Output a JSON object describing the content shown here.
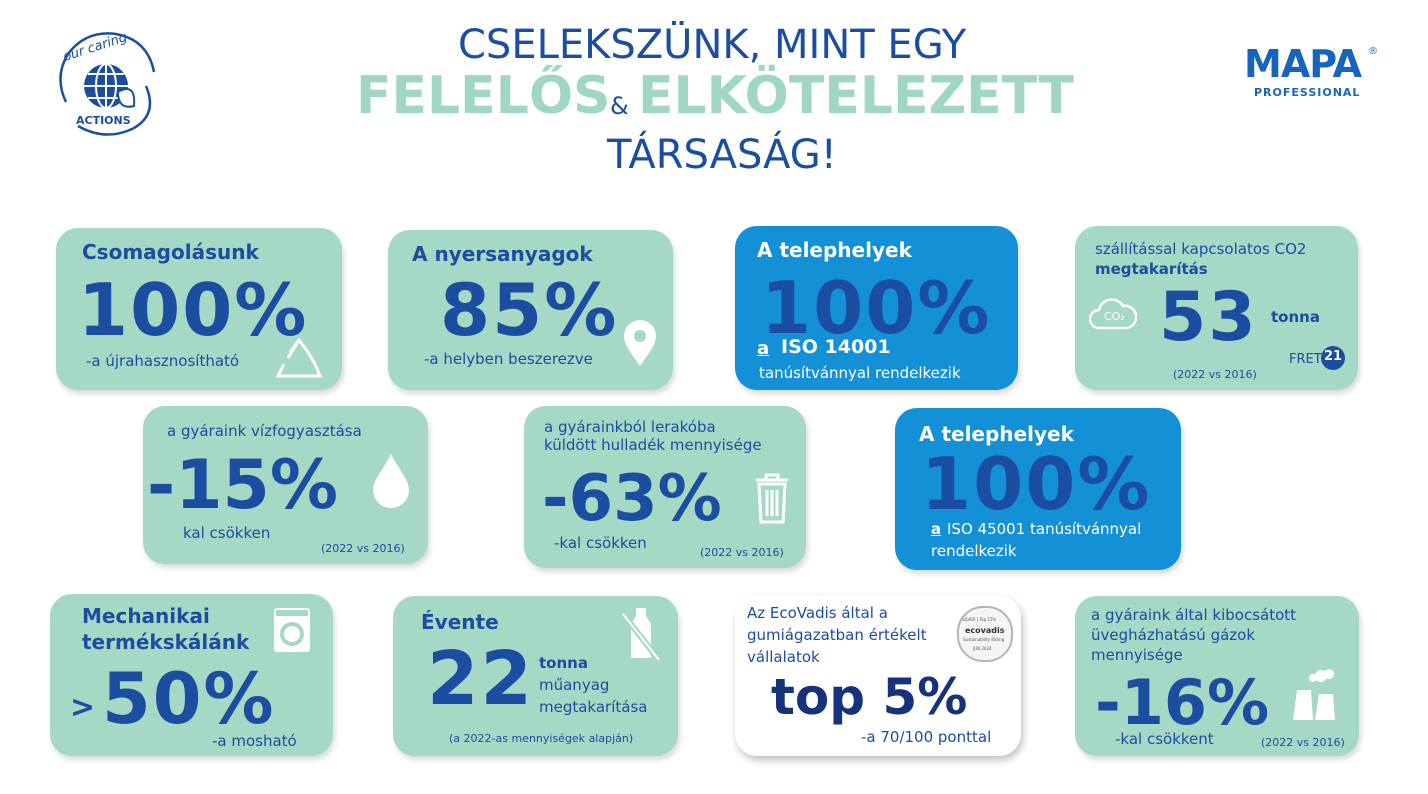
{
  "header": {
    "line1": "CSELEKSZÜNK, MINT EGY",
    "word_a": "FELELŐS",
    "amp": "&",
    "word_b": "ELKÖTELEZETT",
    "line3": "TÁRSASÁG!"
  },
  "logo_left": {
    "top_text": "our caring",
    "bottom_text": "ACTIONS",
    "icon": "globe-leaf-icon"
  },
  "logo_right": {
    "brand": "MAPA",
    "reg": "®",
    "sub": "PROFESSIONAL"
  },
  "colors": {
    "navy": "#1b4ea0",
    "mint": "#a6d8c6",
    "blue": "#1390d6",
    "title_green": "#9fd6c4"
  },
  "cards": {
    "packaging": {
      "label": "Csomagolásunk",
      "value": "100%",
      "note": "-a újrahasznosítható",
      "icon": "recycle-icon"
    },
    "raw": {
      "label": "A nyersanyagok",
      "value": "85%",
      "note": "-a helyben beszerezve",
      "icon": "location-pin-icon"
    },
    "iso14001": {
      "label": "A telephelyek",
      "value": "100%",
      "a": "a",
      "line1": "ISO 14001",
      "line2": "tanúsítvánnyal rendelkezik"
    },
    "co2": {
      "line1": "szállítással kapcsolatos CO2",
      "line2": "megtakarítás",
      "value": "53",
      "unit": "tonna",
      "co2": "CO₂",
      "fret": "FRET",
      "fret_num": "21",
      "note": "(2022 vs 2016)",
      "icon": "cloud-co2-icon"
    },
    "water": {
      "label": "a gyáraink vízfogyasztása",
      "value": "-15%",
      "note": "kal csökken",
      "period": "(2022 vs 2016)",
      "icon": "water-drop-icon"
    },
    "waste": {
      "line1": "a gyárainkból lerakóba",
      "line2": "küldött hulladék mennyisége",
      "value": "-63%",
      "note": "-kal csökken",
      "period": "(2022 vs 2016)",
      "icon": "trash-bin-icon"
    },
    "iso45001": {
      "label": "A telephelyek",
      "value": "100%",
      "a": "a",
      "line1": "ISO 45001 tanúsítvánnyal",
      "line2": "rendelkezik"
    },
    "mech": {
      "line1": "Mechanikai",
      "line2": "termékskálánk",
      "gt": ">",
      "value": "50%",
      "note": "-a mosható",
      "icon": "washing-machine-icon"
    },
    "yearly": {
      "label": "Évente",
      "value": "22",
      "u1": "tonna",
      "u2": "műanyag",
      "u3": "megtakarítása",
      "note": "(a 2022-as mennyiségek alapján)",
      "icon": "no-plastic-bottle-icon"
    },
    "ecovadis": {
      "line1": "Az EcoVadis által a",
      "line2": "gumiágazatban értékelt",
      "line3": "vállalatok",
      "value": "top 5%",
      "note": "-a 70/100 ponttal",
      "badge_top": "SILVER | Top 15%",
      "badge_name": "ecovadis",
      "badge_sub": "Sustainability Rating",
      "badge_date": "JUN 2024"
    },
    "ghg": {
      "line1": "a gyáraink által kibocsátott",
      "line2": "üvegházhatású gázok",
      "line3": "mennyisége",
      "value": "-16%",
      "note": "-kal csökkent",
      "period": "(2022 vs 2016)",
      "icon": "factory-icon"
    }
  }
}
